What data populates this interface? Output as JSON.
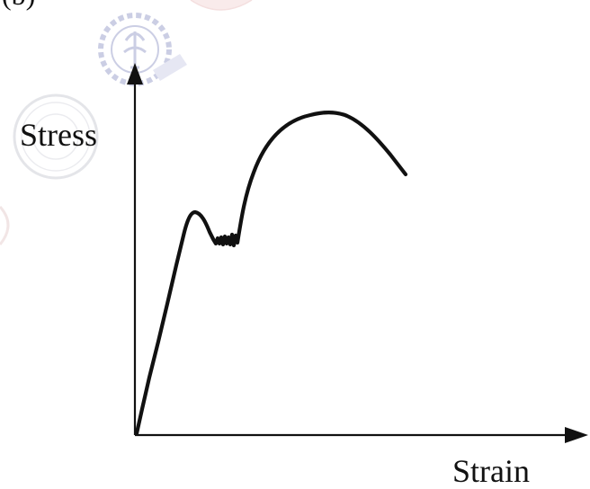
{
  "figure": {
    "panel_label": "(b)",
    "y_axis_label": "Stress",
    "x_axis_label": "Strain",
    "curve_color": "#111111",
    "axis_color": "#111111",
    "watermark_color": "#8e93c4"
  }
}
